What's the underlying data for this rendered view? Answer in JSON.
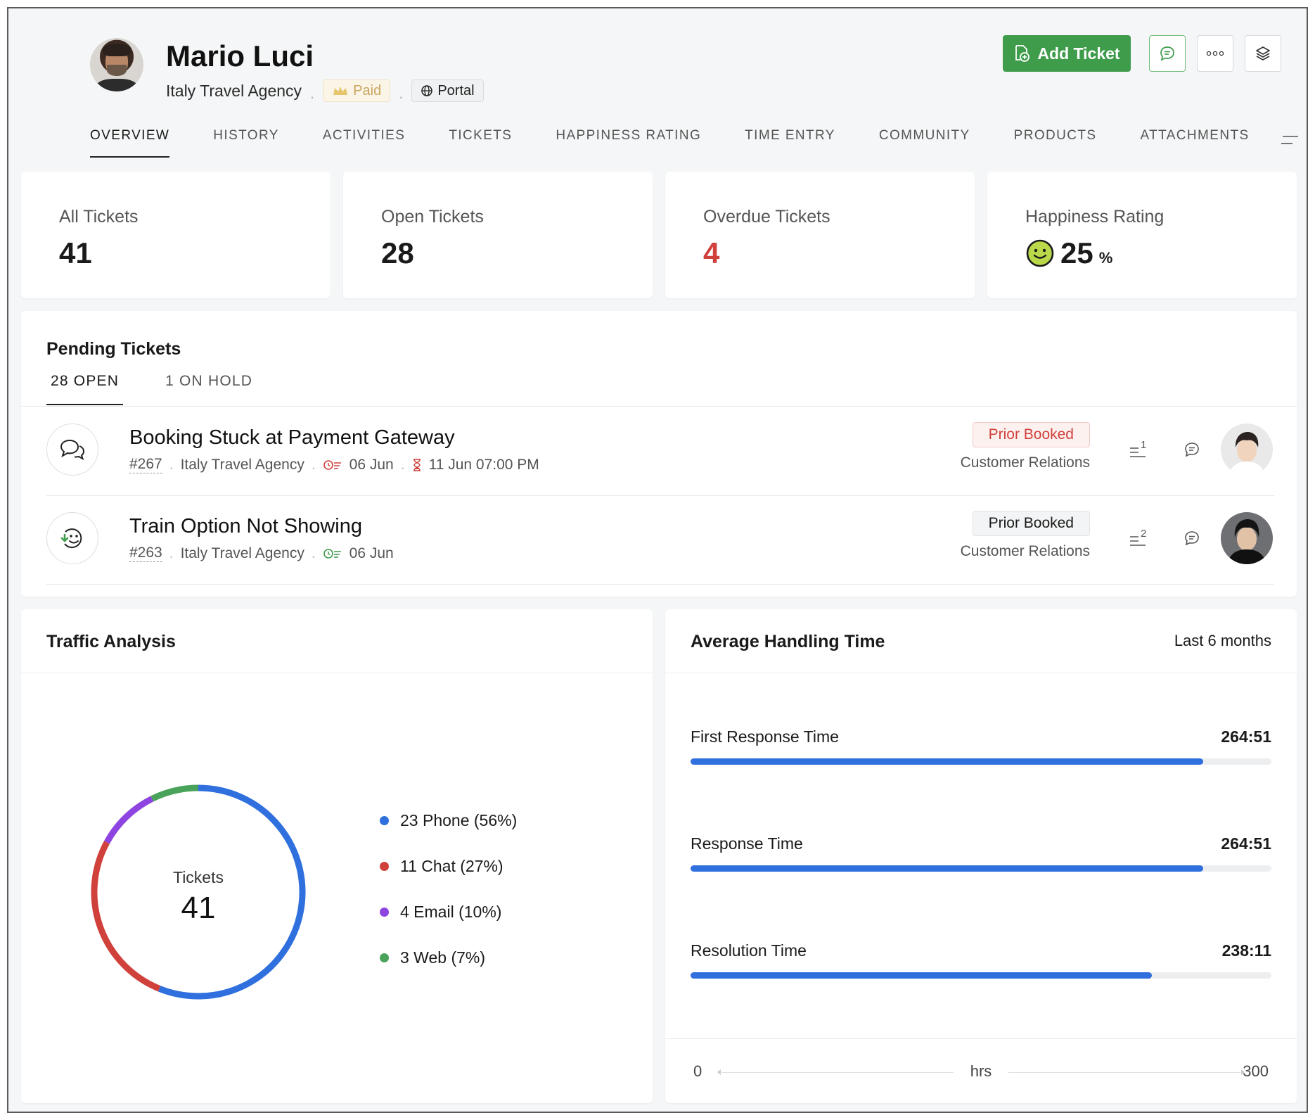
{
  "contact": {
    "name": "Mario Luci",
    "company": "Italy Travel Agency",
    "paid_label": "Paid",
    "portal_label": "Portal"
  },
  "actions": {
    "add_ticket_label": "Add Ticket"
  },
  "tabs": [
    {
      "label": "OVERVIEW",
      "active": true
    },
    {
      "label": "HISTORY"
    },
    {
      "label": "ACTIVITIES"
    },
    {
      "label": "TICKETS"
    },
    {
      "label": "HAPPINESS RATING"
    },
    {
      "label": "TIME ENTRY"
    },
    {
      "label": "COMMUNITY"
    },
    {
      "label": "PRODUCTS"
    },
    {
      "label": "ATTACHMENTS"
    }
  ],
  "stats": {
    "all_tickets": {
      "label": "All Tickets",
      "value": "41"
    },
    "open_tickets": {
      "label": "Open Tickets",
      "value": "28"
    },
    "overdue_tickets": {
      "label": "Overdue Tickets",
      "value": "4",
      "color": "#d0413b"
    },
    "happiness": {
      "label": "Happiness Rating",
      "value": "25",
      "unit": "%"
    }
  },
  "pending": {
    "title": "Pending Tickets",
    "tabs": [
      {
        "label": "28 OPEN",
        "active": true
      },
      {
        "label": "1 ON HOLD"
      }
    ],
    "tickets": [
      {
        "icon": "chat-bubbles-icon",
        "title": "Booking Stuck at Payment Gateway",
        "id": "#267",
        "account": "Italy Travel Agency",
        "created": "06 Jun",
        "due": "11 Jun 07:00 PM",
        "status": "Prior Booked",
        "status_color": "#d0413b",
        "department": "Customer Relations",
        "thread_count": "1"
      },
      {
        "icon": "happiness-face-icon",
        "title": "Train Option Not Showing",
        "id": "#263",
        "account": "Italy Travel Agency",
        "created": "06 Jun",
        "status": "Prior Booked",
        "department": "Customer Relations",
        "thread_count": "2"
      }
    ]
  },
  "traffic": {
    "title": "Traffic Analysis",
    "center_label": "Tickets",
    "center_value": "41",
    "legend": [
      {
        "label": "23 Phone (56%)",
        "color": "#2f6fde"
      },
      {
        "label": "11 Chat (27%)",
        "color": "#d0413b"
      },
      {
        "label": "4 Email (10%)",
        "color": "#8e44e0"
      },
      {
        "label": "3 Web (7%)",
        "color": "#4aa35a"
      }
    ]
  },
  "aht": {
    "title": "Average Handling Time",
    "range": "Last 6 months",
    "metrics": [
      {
        "label": "First Response Time",
        "value": "264:51"
      },
      {
        "label": "Response Time",
        "value": "264:51"
      },
      {
        "label": "Resolution Time",
        "value": "238:11"
      }
    ],
    "axis": {
      "min": "0",
      "max": "300",
      "unit": "hrs"
    }
  },
  "chart_data": [
    {
      "type": "pie",
      "title": "Traffic Analysis",
      "categories": [
        "Phone",
        "Chat",
        "Email",
        "Web"
      ],
      "values": [
        23,
        11,
        4,
        3
      ],
      "colors": [
        "#2f6fde",
        "#d0413b",
        "#8e44e0",
        "#4aa35a"
      ],
      "total": 41,
      "legend_position": "right"
    },
    {
      "type": "bar",
      "title": "Average Handling Time",
      "categories": [
        "First Response Time",
        "Response Time",
        "Resolution Time"
      ],
      "values": [
        264.85,
        264.85,
        238.18
      ],
      "xlabel": "hrs",
      "xlim": [
        0,
        300
      ],
      "orientation": "horizontal"
    }
  ]
}
